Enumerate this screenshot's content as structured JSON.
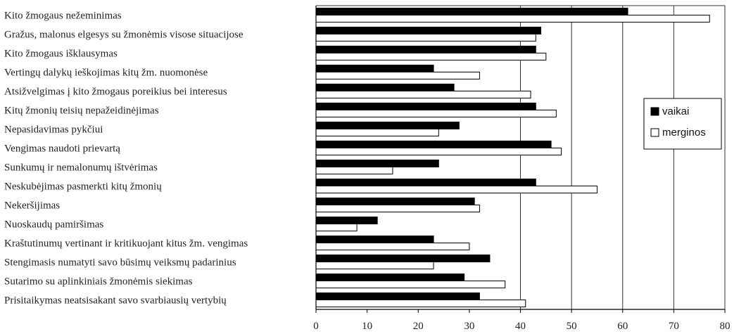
{
  "chart_data": {
    "type": "bar",
    "orientation": "horizontal",
    "categories": [
      "Kito žmogaus nežeminimas",
      "Gražus, malonus elgesys su žmonėmis visose situacijose",
      "Kito žmogaus išklausymas",
      "Vertingų dalykų ieškojimas kitų žm. nuomonėse",
      "Atsižvelgimas į kito žmogaus poreikius bei interesus",
      "Kitų žmonių teisių nepažeidinėjimas",
      "Nepasidavimas pykčiui",
      "Vengimas naudoti prievartą",
      "Sunkumų ir nemalonumų ištvėrimas",
      "Neskubėjimas pasmerkti kitų žmonių",
      "Nekeršijimas",
      "Nuoskaudų pamiršimas",
      "Kraštutinumų vertinant ir kritikuojant kitus žm. vengimas",
      "Stengimasis numatyti savo būsimų veiksmų padarinius",
      "Sutarimo su aplinkiniais žmonėmis siekimas",
      "Prisitaikymas neatsisakant savo svarbiausių vertybių"
    ],
    "series": [
      {
        "name": "vaikai",
        "color": "#000000",
        "values": [
          61,
          44,
          43,
          23,
          27,
          43,
          28,
          46,
          24,
          43,
          31,
          12,
          23,
          34,
          29,
          32
        ]
      },
      {
        "name": "merginos",
        "color": "#ffffff",
        "values": [
          77,
          43,
          45,
          32,
          42,
          47,
          24,
          48,
          15,
          55,
          32,
          8,
          30,
          23,
          37,
          41
        ]
      }
    ],
    "xticks": [
      "0",
      "10",
      "20",
      "30",
      "40",
      "50",
      "60",
      "70",
      "80"
    ],
    "xlim": [
      0,
      80
    ],
    "gridlines": [
      40,
      50,
      60,
      70,
      80
    ],
    "legend_position": "right",
    "title": "",
    "xlabel": "",
    "ylabel": ""
  }
}
